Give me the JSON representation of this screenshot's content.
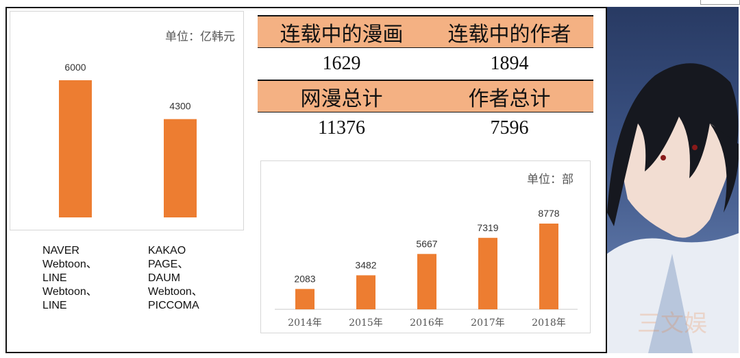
{
  "revenue_chart": {
    "unit_label": "单位：亿韩元",
    "companies": [
      "NAVER\nWebtoon、\nLINE\nWebtoon、\nLINE",
      "KAKAO\nPAGE、\nDAUM\nWebtoon、\nPICCOMA"
    ]
  },
  "stats_table": {
    "row1": {
      "headers": [
        "连载中的漫画",
        "连载中的作者"
      ],
      "values": [
        "1629",
        "1894"
      ]
    },
    "row2": {
      "headers": [
        "网漫总计",
        "作者总计"
      ],
      "values": [
        "11376",
        "7596"
      ]
    }
  },
  "works_chart": {
    "unit_label": "单位：部"
  },
  "watermark": "三文娱",
  "chart_data": [
    {
      "type": "bar",
      "categories": [
        "NAVER Webtoon、LINE Webtoon、LINE",
        "KAKAO PAGE、DAUM Webtoon、PICCOMA"
      ],
      "values": [
        6000,
        4300
      ],
      "value_labels": [
        "6000",
        "4300"
      ],
      "title": "",
      "xlabel": "",
      "ylabel": "",
      "unit": "单位：亿韩元",
      "ylim": [
        0,
        6000
      ],
      "grid": false,
      "color": "#ed7d31"
    },
    {
      "type": "bar",
      "categories": [
        "2014年",
        "2015年",
        "2016年",
        "2017年",
        "2018年"
      ],
      "values": [
        2083,
        3482,
        5667,
        7319,
        8778
      ],
      "value_labels": [
        "2083",
        "3482",
        "5667",
        "7319",
        "8778"
      ],
      "title": "",
      "xlabel": "",
      "ylabel": "",
      "unit": "单位：部",
      "ylim": [
        0,
        9000
      ],
      "grid": false,
      "color": "#ed7d31"
    }
  ]
}
